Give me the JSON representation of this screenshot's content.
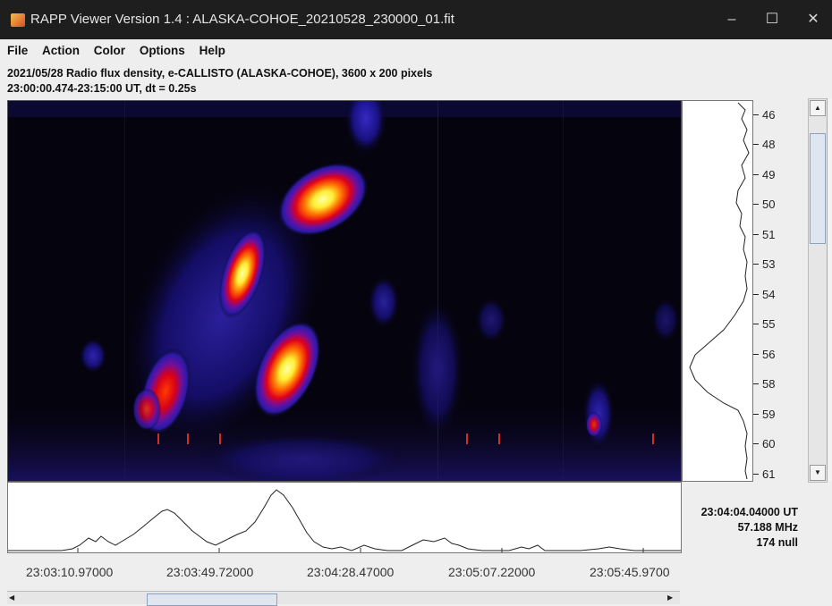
{
  "window": {
    "title": "RAPP Viewer Version 1.4 : ALASKA-COHOE_20210528_230000_01.fit",
    "controls": [
      "–",
      "☐",
      "✕"
    ]
  },
  "menu": [
    "File",
    "Action",
    "Color",
    "Options",
    "Help"
  ],
  "info": {
    "line1": "2021/05/28  Radio flux density, e-CALLISTO (ALASKA-COHOE),  3600 x 200 pixels",
    "line2": "23:00:00.474-23:15:00 UT,  dt = 0.25s"
  },
  "frequency_ticks": [
    "46",
    "48",
    "49",
    "50",
    "51",
    "53",
    "54",
    "55",
    "56",
    "58",
    "59",
    "60",
    "61"
  ],
  "time_ticks": [
    "23:03:10.97000",
    "23:03:49.72000",
    "23:04:28.47000",
    "23:05:07.22000",
    "23:05:45.9700"
  ],
  "readout": {
    "time": "23:04:04.04000 UT",
    "frequency": "57.188 MHz",
    "value": "174 null"
  },
  "colors": {
    "titlebar": "#1e1e1e",
    "spectrum_background": "#05030e",
    "burst_core": "#ffff66",
    "burst_mid": "#ff2a00",
    "burst_halo": "#2a1aa8"
  }
}
